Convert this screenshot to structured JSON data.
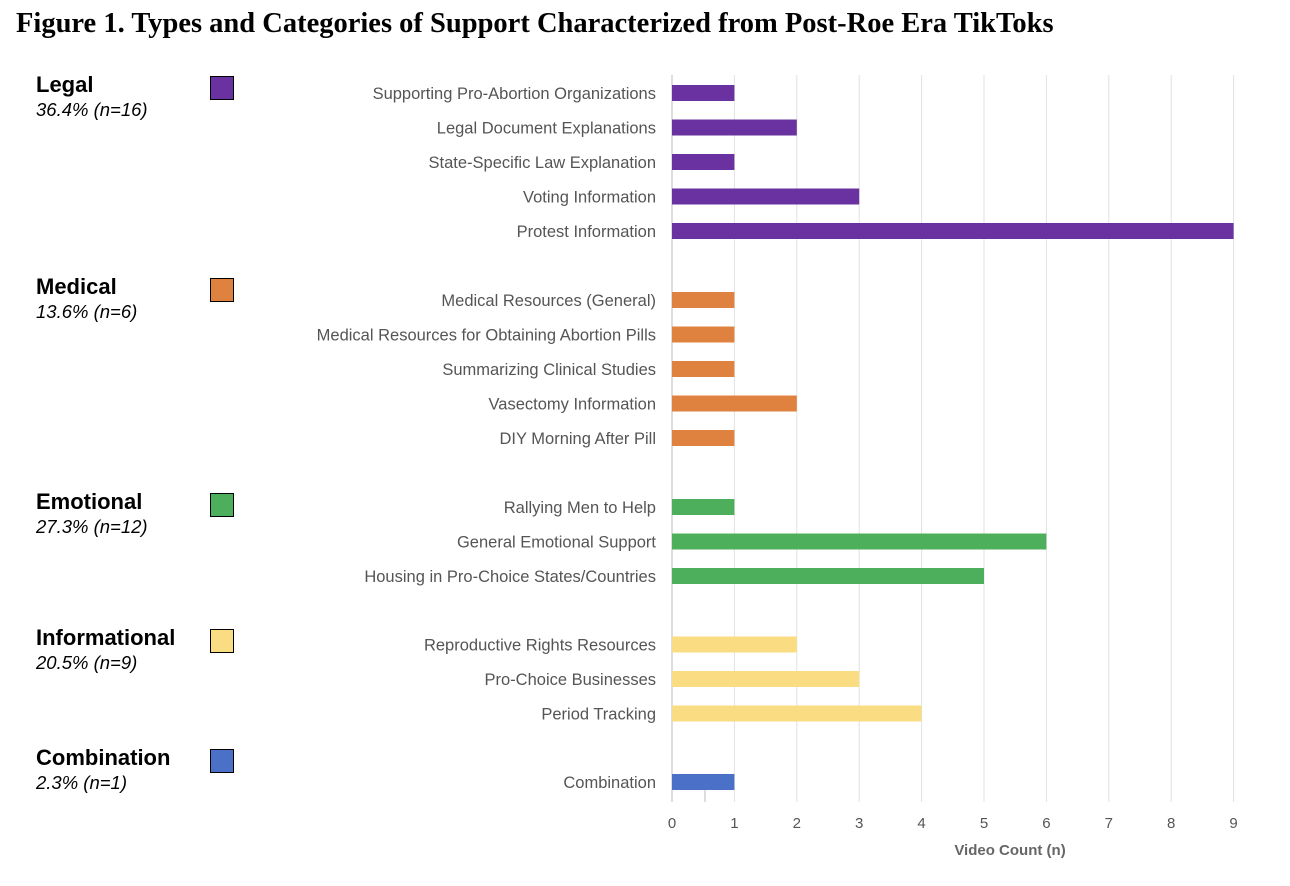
{
  "figure_title": "Figure 1. Types and Categories of Support Characterized from Post-Roe Era TikToks",
  "groups": [
    {
      "name": "Legal",
      "pct": "36.4% (n=16)",
      "color": "#6a31a0"
    },
    {
      "name": "Medical",
      "pct": "13.6% (n=6)",
      "color": "#e0823f"
    },
    {
      "name": "Emotional",
      "pct": "27.3% (n=12)",
      "color": "#4daf5b"
    },
    {
      "name": "Informational",
      "pct": "20.5% (n=9)",
      "color": "#fadc82"
    },
    {
      "name": "Combination",
      "pct": "2.3% (n=1)",
      "color": "#4a70c8"
    }
  ],
  "chart_data": {
    "type": "bar",
    "orientation": "horizontal",
    "categories": [
      "Supporting Pro-Abortion Organizations",
      "Legal Document Explanations",
      "State-Specific Law Explanation",
      "Voting Information",
      "Protest Information",
      "Medical Resources (General)",
      "Medical Resources for Obtaining Abortion Pills",
      "Summarizing Clinical Studies",
      "Vasectomy Information",
      "DIY Morning After Pill",
      "Rallying Men to Help",
      "General Emotional Support",
      "Housing in Pro-Choice States/Countries",
      "Reproductive Rights Resources",
      "Pro-Choice Businesses",
      "Period Tracking",
      "Combination"
    ],
    "values": [
      1,
      2,
      1,
      3,
      9,
      1,
      1,
      1,
      2,
      1,
      1,
      6,
      5,
      2,
      3,
      4,
      1
    ],
    "bar_group": [
      0,
      0,
      0,
      0,
      0,
      1,
      1,
      1,
      1,
      1,
      2,
      2,
      2,
      3,
      3,
      3,
      4
    ],
    "xlim": [
      0,
      9
    ],
    "xticks": [
      0,
      1,
      2,
      3,
      4,
      5,
      6,
      7,
      8,
      9
    ],
    "xlabel": "Video Count (n)",
    "ylabel": "",
    "grid": true
  }
}
